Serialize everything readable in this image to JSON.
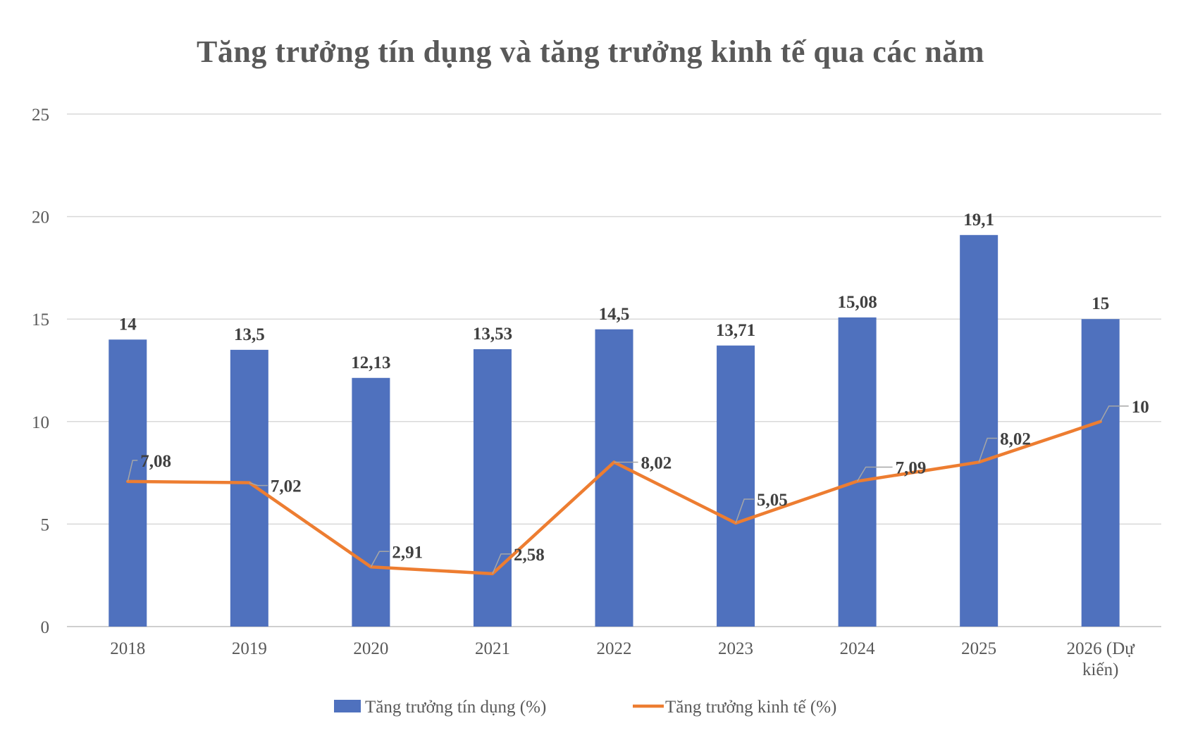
{
  "chart_data": {
    "type": "bar",
    "title": "Tăng trưởng tín dụng và tăng trưởng kinh tế qua các năm",
    "categories": [
      "2018",
      "2019",
      "2020",
      "2021",
      "2022",
      "2023",
      "2024",
      "2025",
      "2026 (Dự kiến)"
    ],
    "category_lines": [
      [
        "2018"
      ],
      [
        "2019"
      ],
      [
        "2020"
      ],
      [
        "2021"
      ],
      [
        "2022"
      ],
      [
        "2023"
      ],
      [
        "2024"
      ],
      [
        "2025"
      ],
      [
        "2026 (Dự",
        "kiến)"
      ]
    ],
    "series": [
      {
        "name": "Tăng trưởng tín dụng (%)",
        "type": "bar",
        "color": "#4F71BE",
        "values": [
          14,
          13.5,
          12.13,
          13.53,
          14.5,
          13.71,
          15.08,
          19.1,
          15
        ],
        "labels": [
          "14",
          "13,5",
          "12,13",
          "13,53",
          "14,5",
          "13,71",
          "15,08",
          "19,1",
          "15"
        ]
      },
      {
        "name": "Tăng trưởng kinh tế (%)",
        "type": "line",
        "color": "#ED7D31",
        "values": [
          7.08,
          7.02,
          2.91,
          2.58,
          8.02,
          5.05,
          7.09,
          8.02,
          10
        ],
        "labels": [
          "7,08",
          "7,02",
          "2,91",
          "2,58",
          "8,02",
          "5,05",
          "7,09",
          "8,02",
          "10"
        ]
      }
    ],
    "ylim": [
      0,
      25
    ],
    "yticks": [
      0,
      5,
      10,
      15,
      20,
      25
    ],
    "xlabel": "",
    "ylabel": "",
    "grid": true,
    "legend": "bottom-center"
  }
}
